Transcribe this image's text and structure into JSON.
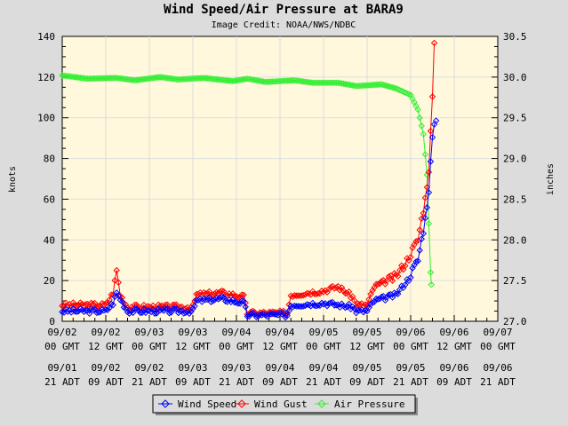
{
  "chart_data": {
    "type": "line",
    "title": "Wind Speed/Air Pressure at BARA9",
    "subtitle": "Image Credit: NOAA/NWS/NDBC",
    "ylabel": "knots",
    "y2label": "inches",
    "ylim": [
      0,
      140
    ],
    "y2lim": [
      27.0,
      30.5
    ],
    "yticks": [
      "0",
      "20",
      "40",
      "60",
      "80",
      "100",
      "120",
      "140"
    ],
    "y2ticks": [
      "27.0",
      "27.5",
      "28.0",
      "28.5",
      "29.0",
      "29.5",
      "30.0",
      "30.5"
    ],
    "xlim_hours": [
      0,
      120
    ],
    "xticks_gmt": [
      [
        "09/02",
        "00 GMT"
      ],
      [
        "09/02",
        "12 GMT"
      ],
      [
        "09/03",
        "00 GMT"
      ],
      [
        "09/03",
        "12 GMT"
      ],
      [
        "09/04",
        "00 GMT"
      ],
      [
        "09/04",
        "12 GMT"
      ],
      [
        "09/05",
        "00 GMT"
      ],
      [
        "09/05",
        "12 GMT"
      ],
      [
        "09/06",
        "00 GMT"
      ],
      [
        "09/06",
        "12 GMT"
      ],
      [
        "09/07",
        "00 GMT"
      ]
    ],
    "xticks_local": [
      [
        "09/01",
        "21 ADT"
      ],
      [
        "09/02",
        "09 ADT"
      ],
      [
        "09/02",
        "21 ADT"
      ],
      [
        "09/03",
        "09 ADT"
      ],
      [
        "09/03",
        "21 ADT"
      ],
      [
        "09/04",
        "09 ADT"
      ],
      [
        "09/04",
        "21 ADT"
      ],
      [
        "09/05",
        "09 ADT"
      ],
      [
        "09/05",
        "21 ADT"
      ],
      [
        "09/06",
        "09 ADT"
      ],
      [
        "09/06",
        "21 ADT"
      ]
    ],
    "grid": true,
    "legend": "bottom",
    "series": [
      {
        "name": "Wind Speed",
        "color": "#0000ff",
        "axis": "left",
        "points": [
          [
            0,
            5
          ],
          [
            12,
            5
          ],
          [
            14,
            9
          ],
          [
            15,
            14
          ],
          [
            17,
            8
          ],
          [
            18,
            5
          ],
          [
            36,
            5
          ],
          [
            37,
            10
          ],
          [
            44,
            11
          ],
          [
            50,
            9
          ],
          [
            51,
            3
          ],
          [
            62,
            3
          ],
          [
            63,
            8
          ],
          [
            72,
            9
          ],
          [
            80,
            7
          ],
          [
            81,
            5
          ],
          [
            84,
            5
          ],
          [
            86,
            10
          ],
          [
            92,
            13
          ],
          [
            95,
            20
          ],
          [
            98,
            30
          ],
          [
            100,
            50
          ],
          [
            101,
            65
          ],
          [
            102,
            90
          ],
          [
            103,
            100
          ]
        ]
      },
      {
        "name": "Wind Gust",
        "color": "#ff0000",
        "axis": "left",
        "points": [
          [
            0,
            8
          ],
          [
            12,
            8
          ],
          [
            14,
            14
          ],
          [
            15,
            25
          ],
          [
            16,
            13
          ],
          [
            18,
            7
          ],
          [
            36,
            7
          ],
          [
            37,
            13
          ],
          [
            44,
            14
          ],
          [
            50,
            12
          ],
          [
            51,
            4
          ],
          [
            62,
            4
          ],
          [
            63,
            13
          ],
          [
            72,
            15
          ],
          [
            76,
            17
          ],
          [
            80,
            12
          ],
          [
            81,
            8
          ],
          [
            84,
            8
          ],
          [
            86,
            17
          ],
          [
            92,
            22
          ],
          [
            95,
            30
          ],
          [
            98,
            40
          ],
          [
            100,
            60
          ],
          [
            101,
            75
          ],
          [
            102,
            110
          ],
          [
            102.5,
            135
          ]
        ]
      },
      {
        "name": "Air Pressure",
        "color": "#33ee33",
        "axis": "right",
        "points": [
          [
            0,
            30.02
          ],
          [
            7,
            29.98
          ],
          [
            15,
            29.99
          ],
          [
            20,
            29.96
          ],
          [
            27,
            30.0
          ],
          [
            32,
            29.97
          ],
          [
            39,
            29.99
          ],
          [
            47,
            29.95
          ],
          [
            51,
            29.98
          ],
          [
            56,
            29.94
          ],
          [
            64,
            29.96
          ],
          [
            69,
            29.93
          ],
          [
            76,
            29.93
          ],
          [
            81,
            29.89
          ],
          [
            88,
            29.91
          ],
          [
            92,
            29.86
          ],
          [
            96,
            29.78
          ],
          [
            98,
            29.6
          ],
          [
            99.5,
            29.3
          ],
          [
            100.5,
            28.8
          ],
          [
            101,
            28.2
          ],
          [
            101.5,
            27.6
          ],
          [
            101.7,
            27.45
          ]
        ]
      }
    ]
  }
}
